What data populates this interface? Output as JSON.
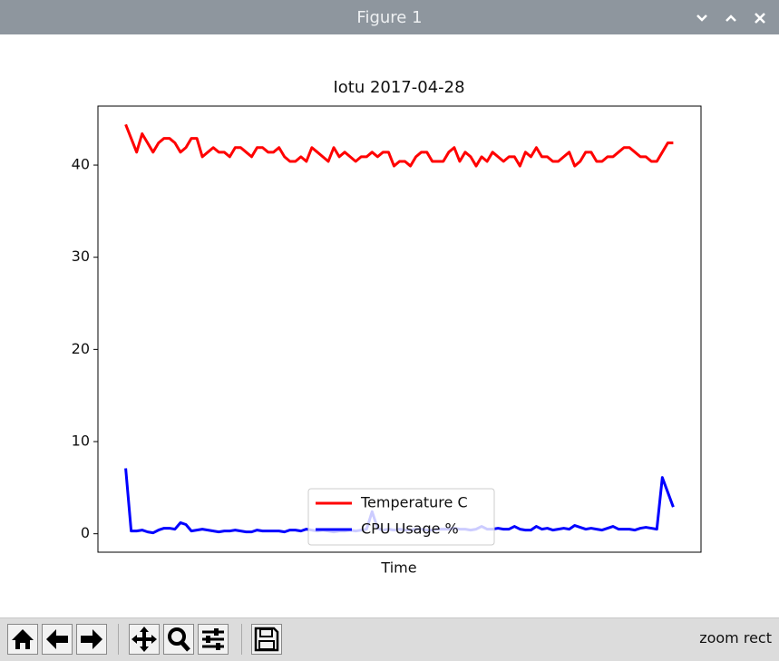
{
  "window": {
    "title": "Figure 1"
  },
  "chart_data": {
    "type": "line",
    "title": "Iotu 2017-04-28",
    "xlabel": "Time",
    "ylim": [
      -2,
      46.4
    ],
    "yticks": [
      0,
      10,
      20,
      30,
      40
    ],
    "legend": "lower center",
    "series": [
      {
        "name": "Temperature C",
        "color": "#ff0000",
        "values": [
          44.4,
          42.9,
          41.4,
          43.4,
          42.4,
          41.4,
          42.4,
          42.9,
          42.9,
          42.4,
          41.4,
          41.9,
          42.9,
          42.9,
          40.9,
          41.4,
          41.9,
          41.4,
          41.4,
          40.9,
          41.9,
          41.9,
          41.4,
          40.9,
          41.9,
          41.9,
          41.4,
          41.4,
          41.9,
          40.9,
          40.4,
          40.4,
          40.9,
          40.4,
          41.9,
          41.4,
          40.9,
          40.4,
          41.9,
          40.9,
          41.4,
          40.9,
          40.4,
          40.9,
          40.9,
          41.4,
          40.9,
          41.4,
          41.4,
          39.9,
          40.4,
          40.4,
          39.9,
          40.9,
          41.4,
          41.4,
          40.4,
          40.4,
          40.4,
          41.4,
          41.9,
          40.4,
          41.4,
          40.9,
          39.9,
          40.9,
          40.4,
          41.4,
          40.9,
          40.4,
          40.9,
          40.9,
          39.9,
          41.4,
          40.9,
          41.9,
          40.9,
          40.9,
          40.4,
          40.4,
          40.9,
          41.4,
          39.9,
          40.4,
          41.4,
          41.4,
          40.4,
          40.4,
          40.9,
          40.9,
          41.4,
          41.9,
          41.9,
          41.4,
          40.9,
          40.9,
          40.4,
          40.4,
          41.4,
          42.4,
          42.4
        ]
      },
      {
        "name": "CPU Usage %",
        "color": "#0000ff",
        "values": [
          7.1,
          0.3,
          0.3,
          0.4,
          0.2,
          0.1,
          0.4,
          0.6,
          0.6,
          0.5,
          1.2,
          1.0,
          0.3,
          0.4,
          0.5,
          0.4,
          0.3,
          0.2,
          0.3,
          0.3,
          0.4,
          0.3,
          0.2,
          0.2,
          0.4,
          0.3,
          0.3,
          0.3,
          0.3,
          0.2,
          0.4,
          0.4,
          0.3,
          0.5,
          0.4,
          0.3,
          0.4,
          0.3,
          0.2,
          0.3,
          0.3,
          0.4,
          0.3,
          0.4,
          0.5,
          2.4,
          0.6,
          0.4,
          0.5,
          0.4,
          0.5,
          0.4,
          0.4,
          0.5,
          0.5,
          0.4,
          0.4,
          0.5,
          0.5,
          0.5,
          0.6,
          0.5,
          0.5,
          0.4,
          0.5,
          0.8,
          0.5,
          0.5,
          0.6,
          0.5,
          0.5,
          0.8,
          0.5,
          0.4,
          0.4,
          0.8,
          0.5,
          0.6,
          0.4,
          0.5,
          0.6,
          0.5,
          0.9,
          0.7,
          0.5,
          0.6,
          0.5,
          0.4,
          0.6,
          0.8,
          0.5,
          0.5,
          0.5,
          0.4,
          0.6,
          0.7,
          0.6,
          0.5,
          6.1,
          4.5,
          2.9
        ]
      }
    ]
  },
  "toolbar": {
    "status": "zoom rect"
  }
}
